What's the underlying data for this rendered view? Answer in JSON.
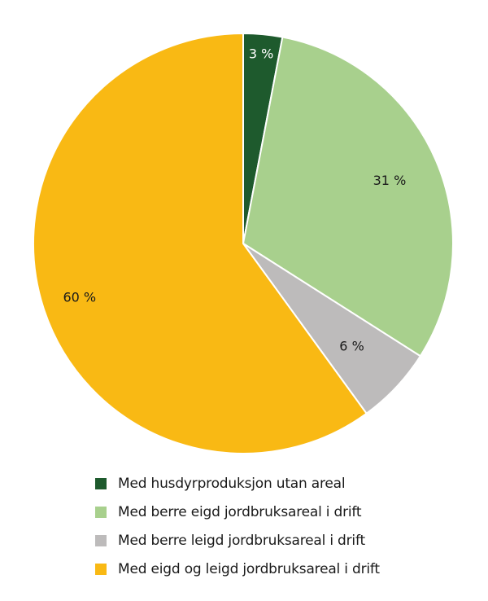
{
  "chart_data": {
    "type": "pie",
    "start_angle": "top",
    "direction": "clockwise",
    "slices": [
      {
        "name": "Med husdyrproduksjon utan areal",
        "value": 3,
        "label": "3 %",
        "color": "#1e5a2d",
        "label_color": "#ffffff"
      },
      {
        "name": "Med berre eigd jordbruksareal i drift",
        "value": 31,
        "label": "31 %",
        "color": "#a8d08d",
        "label_color": "#1a1a1a"
      },
      {
        "name": "Med berre leigd jordbruksareal i drift",
        "value": 6,
        "label": "6 %",
        "color": "#bdbbbb",
        "label_color": "#1a1a1a"
      },
      {
        "name": "Med eigd og leigd jordbruksareal i drift",
        "value": 60,
        "label": "60 %",
        "color": "#f9b914",
        "label_color": "#1a1a1a"
      }
    ],
    "legend_placement": "bottom"
  }
}
